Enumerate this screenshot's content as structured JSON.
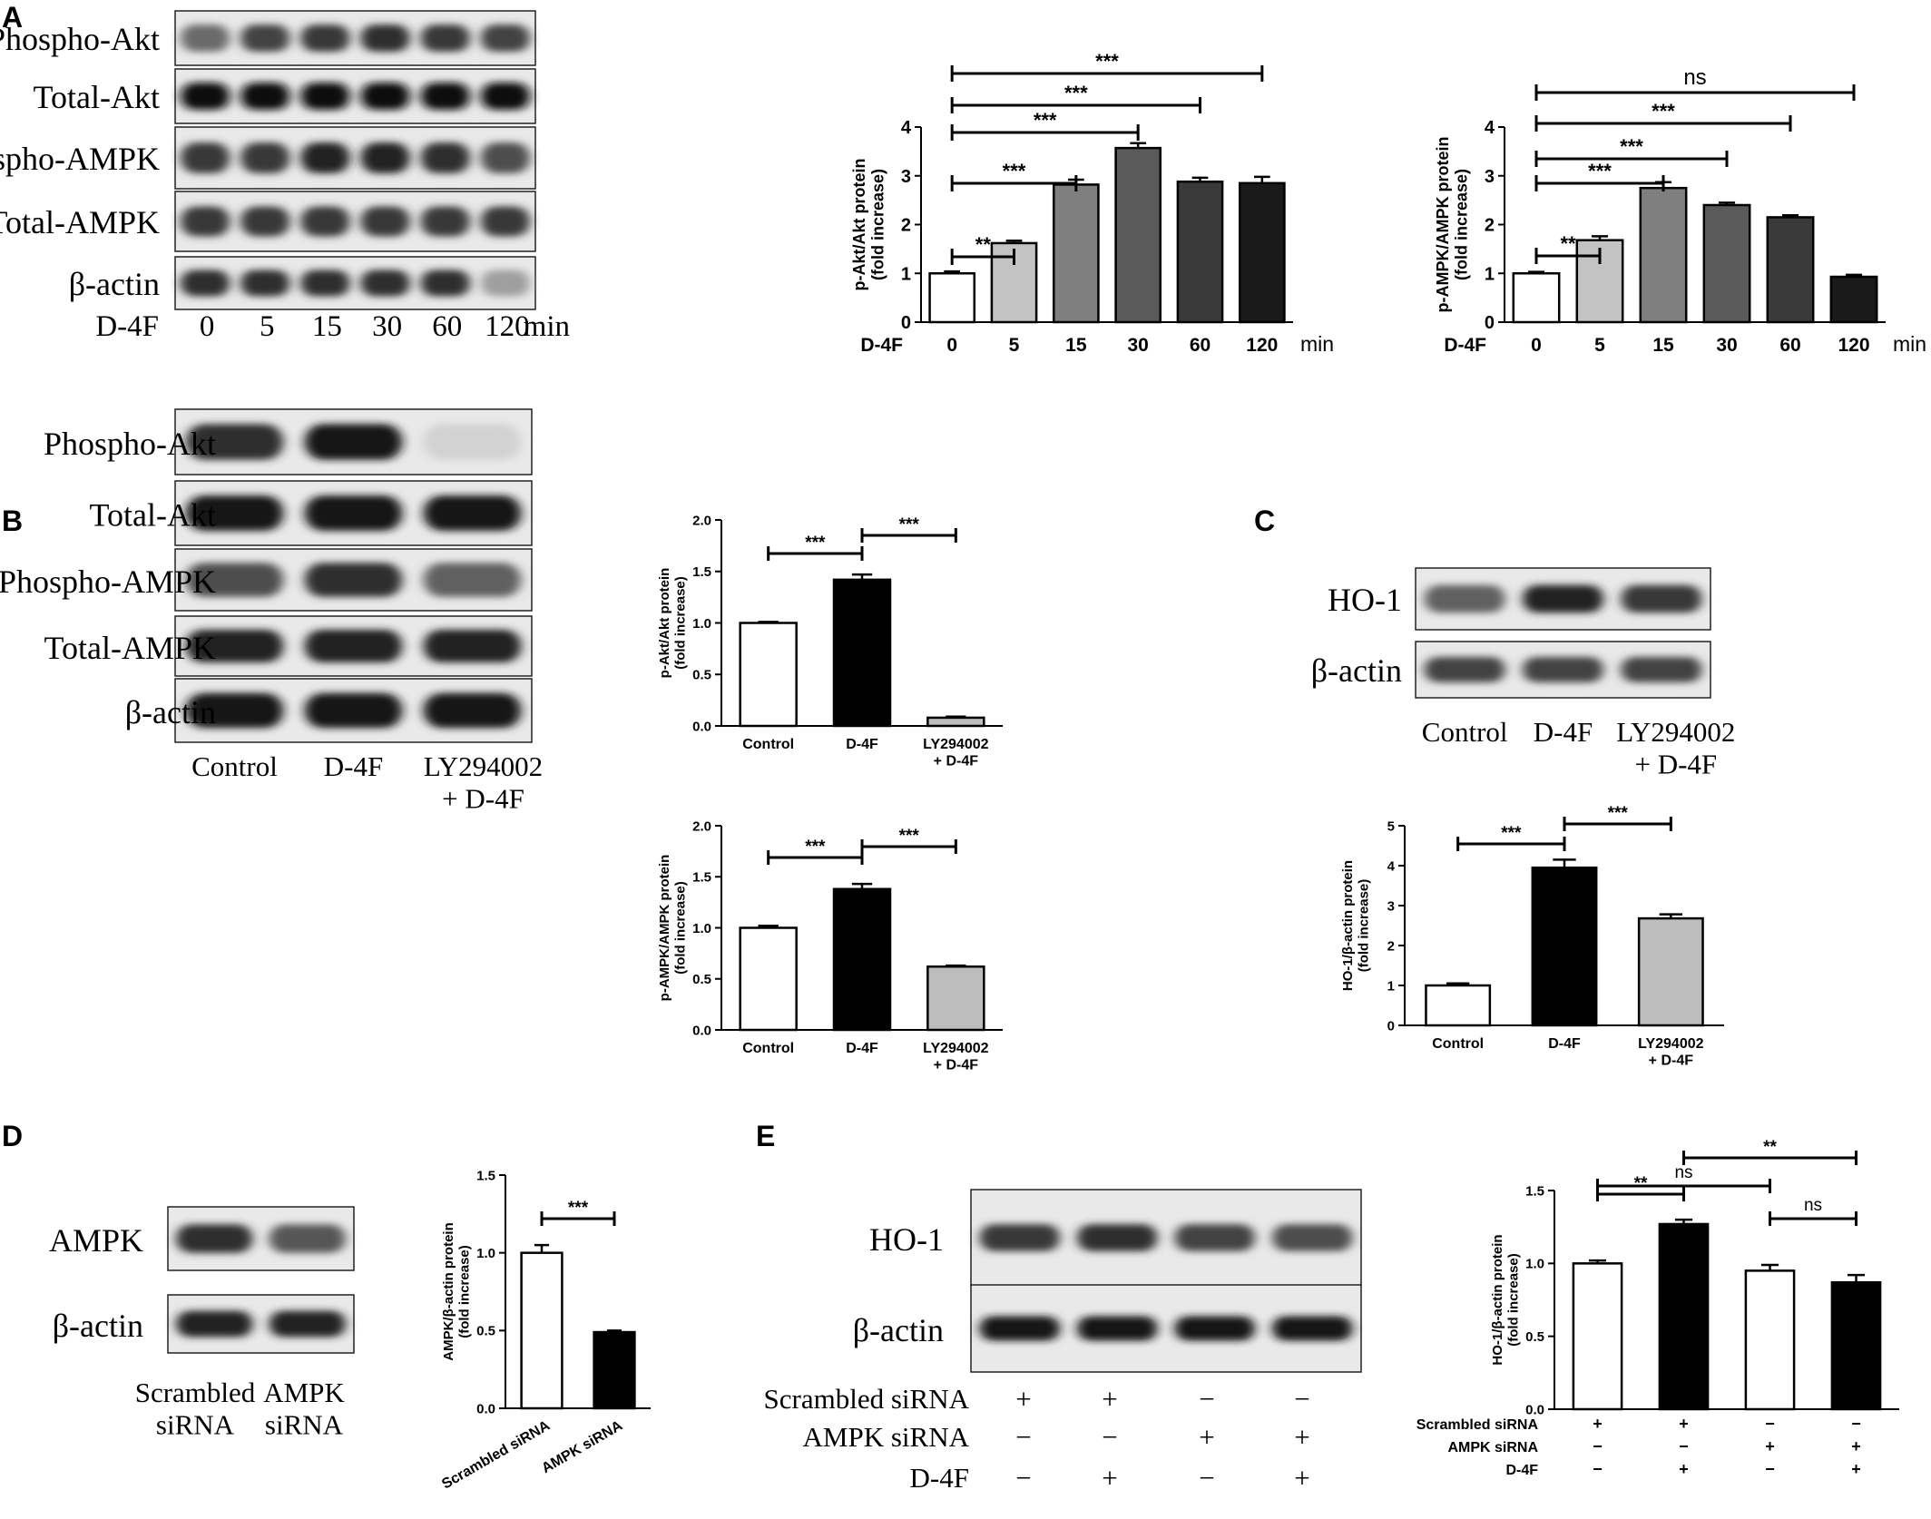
{
  "panels": {
    "A": {
      "letter": "A",
      "blot_labels": [
        "Phospho-Akt",
        "Total-Akt",
        "Phospho-AMPK",
        "Total-AMPK",
        "β-actin"
      ],
      "lane_prefix": "D-4F",
      "lanes": [
        "0",
        "5",
        "15",
        "30",
        "60",
        "120"
      ],
      "lane_unit": "min",
      "band_intensity": [
        [
          0.55,
          0.75,
          0.8,
          0.85,
          0.8,
          0.75
        ],
        [
          1,
          1,
          1,
          1,
          1,
          1
        ],
        [
          0.8,
          0.8,
          0.9,
          0.9,
          0.85,
          0.7
        ],
        [
          0.8,
          0.8,
          0.8,
          0.8,
          0.8,
          0.8
        ],
        [
          0.85,
          0.85,
          0.85,
          0.85,
          0.85,
          0.3
        ]
      ]
    },
    "B": {
      "letter": "B",
      "blot_labels": [
        "Phospho-Akt",
        "Total-Akt",
        "Phospho-AMPK",
        "Total-AMPK",
        "β-actin"
      ],
      "lanes": [
        "Control",
        "D-4F",
        "LY294002\n+ D-4F"
      ],
      "band_intensity": [
        [
          0.85,
          0.95,
          0.05
        ],
        [
          0.95,
          0.95,
          0.95
        ],
        [
          0.7,
          0.85,
          0.6
        ],
        [
          0.9,
          0.9,
          0.9
        ],
        [
          0.95,
          0.95,
          0.95
        ]
      ]
    },
    "C": {
      "letter": "C",
      "blot_labels": [
        "HO-1",
        "β-actin"
      ],
      "lanes": [
        "Control",
        "D-4F",
        "LY294002\n+ D-4F"
      ],
      "band_intensity": [
        [
          0.6,
          0.9,
          0.8
        ],
        [
          0.75,
          0.75,
          0.75
        ]
      ]
    },
    "D": {
      "letter": "D",
      "blot_labels": [
        "AMPK",
        "β-actin"
      ],
      "lanes": [
        "Scrambled\nsiRNA",
        "AMPK\nsiRNA"
      ],
      "band_intensity": [
        [
          0.85,
          0.65
        ],
        [
          0.9,
          0.9
        ]
      ]
    },
    "E": {
      "letter": "E",
      "blot_labels": [
        "HO-1",
        "β-actin"
      ],
      "band_intensity": [
        [
          0.8,
          0.85,
          0.75,
          0.7
        ],
        [
          0.95,
          0.95,
          0.95,
          0.95
        ]
      ],
      "treatments": [
        {
          "label": "Scrambled siRNA",
          "signs": [
            "+",
            "+",
            "−",
            "−"
          ]
        },
        {
          "label": "AMPK siRNA",
          "signs": [
            "−",
            "−",
            "+",
            "+"
          ]
        },
        {
          "label": "D-4F",
          "signs": [
            "−",
            "+",
            "−",
            "+"
          ]
        }
      ]
    }
  },
  "chart_data": [
    {
      "id": "A-akt",
      "type": "bar",
      "ylabel": "p-Akt/Akt protein\n(fold increase)",
      "xprefix": "D-4F",
      "xunit": "min",
      "categories": [
        "0",
        "5",
        "15",
        "30",
        "60",
        "120"
      ],
      "values": [
        1.0,
        1.62,
        2.82,
        3.57,
        2.88,
        2.85
      ],
      "errors": [
        0.04,
        0.05,
        0.1,
        0.1,
        0.08,
        0.13
      ],
      "ylim": [
        0,
        4
      ],
      "yticks": [
        "0",
        "1",
        "2",
        "3",
        "4"
      ],
      "colors": [
        "#ffffff",
        "#c3c3c3",
        "#7f7f7f",
        "#5a5a5a",
        "#3a3a3a",
        "#1a1a1a"
      ],
      "significance": [
        {
          "from": 0,
          "to": 1,
          "label": "**"
        },
        {
          "from": 0,
          "to": 2,
          "label": "***"
        },
        {
          "from": 0,
          "to": 3,
          "label": "***"
        },
        {
          "from": 0,
          "to": 4,
          "label": "***"
        },
        {
          "from": 0,
          "to": 5,
          "label": "***"
        }
      ]
    },
    {
      "id": "A-ampk",
      "type": "bar",
      "ylabel": "p-AMPK/AMPK protein\n(fold increase)",
      "xprefix": "D-4F",
      "xunit": "min",
      "categories": [
        "0",
        "5",
        "15",
        "30",
        "60",
        "120"
      ],
      "values": [
        1.0,
        1.68,
        2.75,
        2.4,
        2.15,
        0.93
      ],
      "errors": [
        0.03,
        0.08,
        0.12,
        0.05,
        0.04,
        0.04
      ],
      "ylim": [
        0,
        4
      ],
      "yticks": [
        "0",
        "1",
        "2",
        "3",
        "4"
      ],
      "colors": [
        "#ffffff",
        "#c3c3c3",
        "#7f7f7f",
        "#5a5a5a",
        "#3a3a3a",
        "#1a1a1a"
      ],
      "significance": [
        {
          "from": 0,
          "to": 1,
          "label": "**"
        },
        {
          "from": 0,
          "to": 2,
          "label": "***"
        },
        {
          "from": 0,
          "to": 3,
          "label": "***"
        },
        {
          "from": 0,
          "to": 4,
          "label": "***"
        },
        {
          "from": 0,
          "to": 5,
          "label": "ns"
        }
      ]
    },
    {
      "id": "B-akt",
      "type": "bar",
      "ylabel": "p-Akt/Akt protein\n(fold increase)",
      "categories": [
        "Control",
        "D-4F",
        "LY294002\n+ D-4F"
      ],
      "values": [
        1.0,
        1.42,
        0.08
      ],
      "errors": [
        0.01,
        0.05,
        0.01
      ],
      "ylim": [
        0,
        2
      ],
      "yticks": [
        "0.0",
        "0.5",
        "1.0",
        "1.5",
        "2.0"
      ],
      "colors": [
        "#ffffff",
        "#000000",
        "#bdbdbd"
      ],
      "significance": [
        {
          "from": 0,
          "to": 1,
          "label": "***"
        },
        {
          "from": 1,
          "to": 2,
          "label": "***"
        }
      ]
    },
    {
      "id": "B-ampk",
      "type": "bar",
      "ylabel": "p-AMPK/AMPK protein\n(fold increase)",
      "categories": [
        "Control",
        "D-4F",
        "LY294002\n+ D-4F"
      ],
      "values": [
        1.0,
        1.38,
        0.62
      ],
      "errors": [
        0.02,
        0.05,
        0.01
      ],
      "ylim": [
        0,
        2
      ],
      "yticks": [
        "0.0",
        "0.5",
        "1.0",
        "1.5",
        "2.0"
      ],
      "colors": [
        "#ffffff",
        "#000000",
        "#bdbdbd"
      ],
      "significance": [
        {
          "from": 0,
          "to": 1,
          "label": "***"
        },
        {
          "from": 1,
          "to": 2,
          "label": "***"
        }
      ]
    },
    {
      "id": "C-ho1",
      "type": "bar",
      "ylabel": "HO-1/β-actin protein\n(fold increase)",
      "categories": [
        "Control",
        "D-4F",
        "LY294002\n+ D-4F"
      ],
      "values": [
        1.0,
        3.95,
        2.68
      ],
      "errors": [
        0.05,
        0.2,
        0.1
      ],
      "ylim": [
        0,
        5
      ],
      "yticks": [
        "0",
        "1",
        "2",
        "3",
        "4",
        "5"
      ],
      "colors": [
        "#ffffff",
        "#000000",
        "#bdbdbd"
      ],
      "significance": [
        {
          "from": 0,
          "to": 1,
          "label": "***"
        },
        {
          "from": 1,
          "to": 2,
          "label": "***"
        }
      ]
    },
    {
      "id": "D-ampk",
      "type": "bar",
      "ylabel": "AMPK/β-actin protein\n(fold increase)",
      "categories": [
        "Scrambled siRNA",
        "AMPK siRNA"
      ],
      "values": [
        1.0,
        0.49
      ],
      "errors": [
        0.05,
        0.01
      ],
      "ylim": [
        0,
        1.5
      ],
      "yticks": [
        "0.0",
        "0.5",
        "1.0",
        "1.5"
      ],
      "colors": [
        "#ffffff",
        "#000000"
      ],
      "rotate_labels": true,
      "significance": [
        {
          "from": 0,
          "to": 1,
          "label": "***"
        }
      ]
    },
    {
      "id": "E-ho1",
      "type": "bar",
      "ylabel": "HO-1/β-actin protein\n(fold increase)",
      "categories": [
        "",
        "",
        "",
        ""
      ],
      "values": [
        1.0,
        1.27,
        0.95,
        0.87
      ],
      "errors": [
        0.02,
        0.03,
        0.04,
        0.05
      ],
      "ylim": [
        0,
        1.5
      ],
      "yticks": [
        "0.0",
        "0.5",
        "1.0",
        "1.5"
      ],
      "colors": [
        "#ffffff",
        "#000000",
        "#ffffff",
        "#000000"
      ],
      "treatments": [
        {
          "label": "Scrambled siRNA",
          "signs": [
            "+",
            "+",
            "−",
            "−"
          ]
        },
        {
          "label": "AMPK siRNA",
          "signs": [
            "−",
            "−",
            "+",
            "+"
          ]
        },
        {
          "label": "D-4F",
          "signs": [
            "−",
            "+",
            "−",
            "+"
          ]
        }
      ],
      "significance": [
        {
          "from": 0,
          "to": 1,
          "label": "**"
        },
        {
          "from": 0,
          "to": 2,
          "label": "ns"
        },
        {
          "from": 1,
          "to": 3,
          "label": "**"
        },
        {
          "from": 2,
          "to": 3,
          "label": "ns"
        }
      ]
    }
  ]
}
